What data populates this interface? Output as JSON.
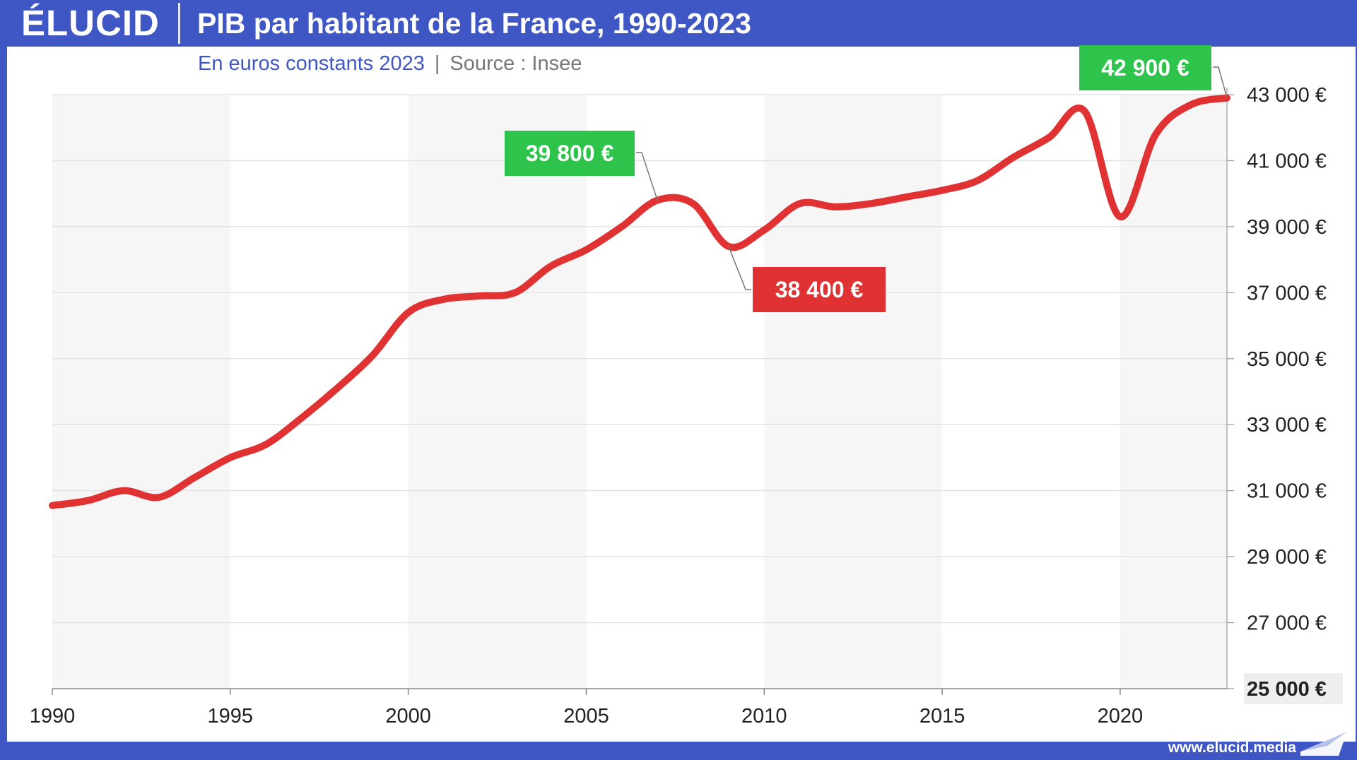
{
  "brand": {
    "logo": "ÉLUCID",
    "url": "www.elucid.media"
  },
  "header": {
    "title": "PIB par habitant de la France, 1990-2023"
  },
  "subtitle": {
    "unit": "En euros constants 2023",
    "separator": "|",
    "source": "Source : Insee"
  },
  "colors": {
    "brand_blue": "#3f56c5",
    "line": "#e03232",
    "positive": "#2ec44b",
    "negative": "#e03232",
    "band": "#f6f6f6",
    "grid": "#e3e3e3"
  },
  "chart_data": {
    "type": "line",
    "title": "PIB par habitant de la France, 1990-2023",
    "xlim": [
      1990,
      2023
    ],
    "ylim": [
      25000,
      43000
    ],
    "x_ticks": [
      {
        "value": 1990,
        "label": "1990"
      },
      {
        "value": 1995,
        "label": "1995"
      },
      {
        "value": 2000,
        "label": "2000"
      },
      {
        "value": 2005,
        "label": "2005"
      },
      {
        "value": 2010,
        "label": "2010"
      },
      {
        "value": 2015,
        "label": "2015"
      },
      {
        "value": 2020,
        "label": "2020"
      }
    ],
    "y_ticks": [
      {
        "value": 43000,
        "label": "43 000 €"
      },
      {
        "value": 41000,
        "label": "41 000 €"
      },
      {
        "value": 39000,
        "label": "39 000 €"
      },
      {
        "value": 37000,
        "label": "37 000 €"
      },
      {
        "value": 35000,
        "label": "35 000 €"
      },
      {
        "value": 33000,
        "label": "33 000 €"
      },
      {
        "value": 31000,
        "label": "31 000 €"
      },
      {
        "value": 29000,
        "label": "29 000 €"
      },
      {
        "value": 27000,
        "label": "27 000 €"
      },
      {
        "value": 25000,
        "label": "25 000 €"
      }
    ],
    "axis_side": "right",
    "grid": true,
    "alternating_bands": true,
    "x": [
      1990,
      1991,
      1992,
      1993,
      1994,
      1995,
      1996,
      1997,
      1998,
      1999,
      2000,
      2001,
      2002,
      2003,
      2004,
      2005,
      2006,
      2007,
      2008,
      2009,
      2010,
      2011,
      2012,
      2013,
      2014,
      2015,
      2016,
      2017,
      2018,
      2019,
      2020,
      2021,
      2022,
      2023
    ],
    "series": [
      {
        "values": [
          30550,
          30700,
          31000,
          30800,
          31400,
          32000,
          32400,
          33200,
          34100,
          35100,
          36400,
          36800,
          36900,
          37000,
          37800,
          38300,
          39000,
          39800,
          39700,
          38400,
          38900,
          39700,
          39600,
          39700,
          39900,
          40100,
          40400,
          41100,
          41700,
          42500,
          39300,
          41800,
          42700,
          42900
        ]
      }
    ],
    "annotations": [
      {
        "x": 2007,
        "y": 39800,
        "label": "39 800 €",
        "color": "#2ec44b"
      },
      {
        "x": 2009,
        "y": 38400,
        "label": "38 400 €",
        "color": "#e03232"
      },
      {
        "x": 2023,
        "y": 42900,
        "label": "42 900 €",
        "color": "#2ec44b"
      }
    ]
  }
}
